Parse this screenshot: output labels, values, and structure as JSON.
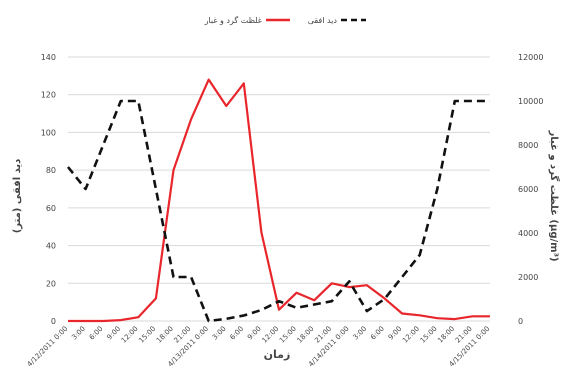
{
  "chart_data": {
    "type": "line",
    "xlabel": "زمان",
    "ylabel_left": "دید افقی (متر)",
    "ylabel_right": "غلظت گرد و غبار (µg/m³)",
    "left_ticks": [
      "0",
      "20",
      "40",
      "60",
      "80",
      "100",
      "120",
      "140"
    ],
    "right_ticks": [
      "0",
      "2000",
      "4000",
      "6000",
      "8000",
      "10000",
      "12000"
    ],
    "ylim_left": [
      0,
      140
    ],
    "ylim_right": [
      0,
      12000
    ],
    "grid": true,
    "legend_position": "top",
    "categories": [
      "4/12/2011 0:00",
      "3:00",
      "6:00",
      "9:00",
      "12:00",
      "15:00",
      "18:00",
      "21:00",
      "4/13/2011 0:00",
      "3:00",
      "6:00",
      "9:00",
      "12:00",
      "15:00",
      "18:00",
      "21:00",
      "4/14/2011 0:00",
      "3:00",
      "6:00",
      "9:00",
      "12:00",
      "15:00",
      "18:00",
      "21:00",
      "4/15/2011 0:00"
    ],
    "series": [
      {
        "name": "غلظت گرد و غبار",
        "axis": "left",
        "color": "#e8262b",
        "dash": "solid",
        "values": [
          0,
          0,
          0,
          0.5,
          2,
          12,
          80,
          107,
          128,
          114,
          126,
          47,
          6,
          15,
          11,
          20,
          18,
          19,
          12,
          4,
          3,
          1.5,
          1,
          2.5,
          2.5
        ]
      },
      {
        "name": "دید افقی",
        "axis": "right",
        "color": "#111111",
        "dash": "dashed",
        "values": [
          7000,
          6000,
          8000,
          10000,
          10000,
          6000,
          2000,
          2000,
          0,
          100,
          250,
          500,
          900,
          600,
          750,
          900,
          1800,
          450,
          1000,
          2000,
          3000,
          6000,
          10000,
          10000,
          10000
        ]
      }
    ]
  }
}
